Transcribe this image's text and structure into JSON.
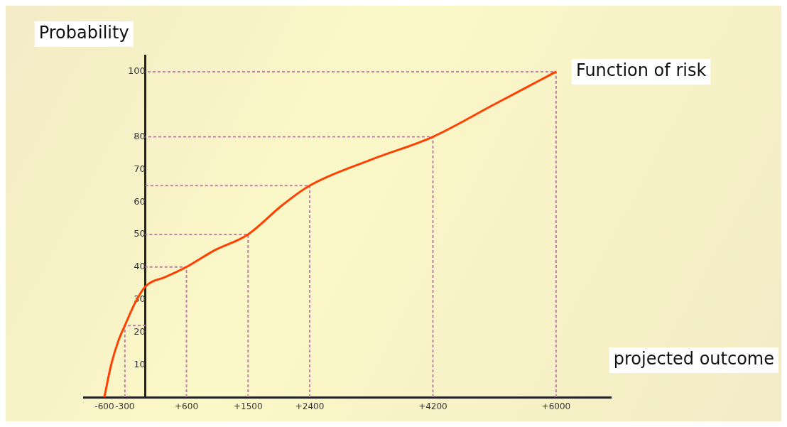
{
  "chart_data": {
    "type": "line",
    "xlabel": "projected outcome",
    "ylabel": "Probability",
    "x": [
      -600,
      -500,
      -400,
      -300,
      -150,
      0,
      300,
      600,
      1000,
      1500,
      2000,
      2400,
      3300,
      4200,
      5100,
      6000
    ],
    "series": [
      {
        "name": "Function of risk",
        "color": "#ff4000",
        "values": [
          0,
          10,
          17,
          22,
          29,
          34,
          37,
          40,
          45,
          50,
          59,
          65,
          73,
          80,
          90,
          100
        ]
      },
      {
        "color": "#c080a8",
        "line_style": "dashed",
        "x": [
          -300,
          -300,
          0
        ],
        "values": [
          0,
          22,
          22
        ]
      },
      {
        "color": "#c080a8",
        "line_style": "dashed",
        "x": [
          600,
          600,
          0
        ],
        "values": [
          0,
          40,
          40
        ]
      },
      {
        "color": "#c080a8",
        "line_style": "dashed",
        "x": [
          1500,
          1500,
          0
        ],
        "values": [
          0,
          50,
          50
        ]
      },
      {
        "color": "#c080a8",
        "line_style": "dashed",
        "x": [
          2400,
          2400,
          0
        ],
        "values": [
          0,
          65,
          65
        ]
      },
      {
        "color": "#c080a8",
        "line_style": "dashed",
        "x": [
          4200,
          4200,
          0
        ],
        "values": [
          0,
          80,
          80
        ]
      },
      {
        "color": "#c080a8",
        "line_style": "dashed",
        "x": [
          6000,
          6000,
          0
        ],
        "values": [
          0,
          100,
          100
        ]
      }
    ],
    "xlim": [
      -900,
      6800
    ],
    "ylim": [
      0,
      105
    ],
    "xticks": [
      {
        "value": -600,
        "label": "-600"
      },
      {
        "value": -300,
        "label": "-300"
      },
      {
        "value": 600,
        "label": "+600"
      },
      {
        "value": 1500,
        "label": "+1500"
      },
      {
        "value": 2400,
        "label": "+2400"
      },
      {
        "value": 4200,
        "label": "+4200"
      },
      {
        "value": 6000,
        "label": "+6000"
      }
    ],
    "yticks": [
      10,
      20,
      30,
      40,
      50,
      60,
      70,
      80,
      100
    ],
    "grid": false,
    "legend": false,
    "marker": "none",
    "line_style": "solid"
  }
}
